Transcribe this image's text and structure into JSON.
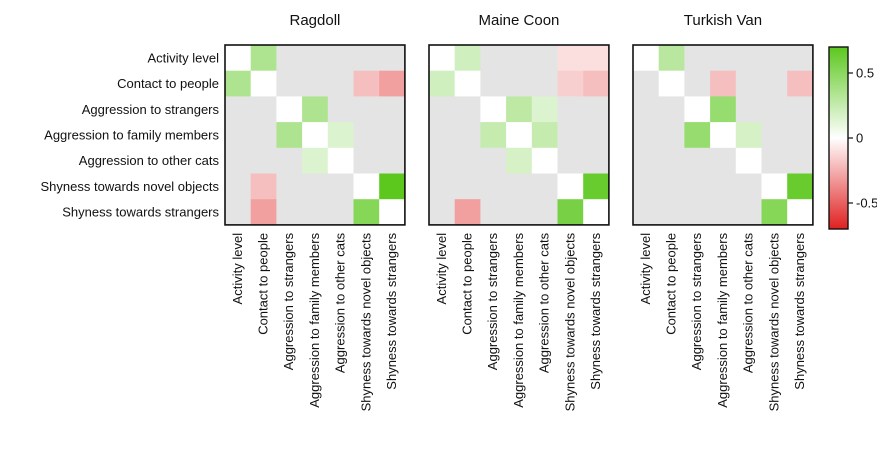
{
  "chart_data": {
    "type": "heatmap",
    "traits": [
      "Activity level",
      "Contact to people",
      "Aggression to strangers",
      "Aggression to family members",
      "Aggression to other cats",
      "Shyness towards novel objects",
      "Shyness towards strangers"
    ],
    "colorbar": {
      "min": -0.7,
      "max": 0.7,
      "ticks": [
        {
          "value": 0.5,
          "label": "0.5"
        },
        {
          "value": 0,
          "label": "0"
        },
        {
          "value": -0.5,
          "label": "-0.5"
        }
      ],
      "colors": {
        "negative": "#e02020",
        "neutral": "#e4e4e4",
        "positive": "#5cc81e"
      }
    },
    "panels": [
      {
        "title": "Ragdoll",
        "matrix": [
          [
            null,
            0.35,
            0,
            0,
            0,
            0,
            0
          ],
          [
            0.35,
            null,
            0,
            0,
            0,
            -0.2,
            -0.3
          ],
          [
            0,
            0,
            null,
            0.35,
            0,
            0,
            0
          ],
          [
            0,
            0,
            0.35,
            null,
            0.15,
            0,
            0
          ],
          [
            0,
            0,
            0,
            0.15,
            null,
            0,
            0
          ],
          [
            0,
            -0.2,
            0,
            0,
            0,
            null,
            0.72
          ],
          [
            0,
            -0.3,
            0,
            0,
            0,
            0.52,
            null
          ]
        ]
      },
      {
        "title": "Maine Coon",
        "matrix": [
          [
            null,
            0.2,
            0,
            0,
            0,
            -0.1,
            -0.1
          ],
          [
            0.2,
            null,
            0,
            0,
            0,
            -0.15,
            -0.2
          ],
          [
            0,
            0,
            null,
            0.28,
            0.15,
            0,
            0
          ],
          [
            0,
            0,
            0.25,
            null,
            0.25,
            0,
            0
          ],
          [
            0,
            0,
            0,
            0.18,
            null,
            0,
            0
          ],
          [
            0,
            0,
            0,
            0,
            0,
            null,
            0.65
          ],
          [
            0,
            -0.3,
            0,
            0,
            0,
            0.58,
            null
          ]
        ]
      },
      {
        "title": "Turkish Van",
        "matrix": [
          [
            null,
            0.3,
            0,
            0,
            0,
            0,
            0
          ],
          [
            0,
            null,
            0,
            -0.2,
            0,
            0,
            -0.2
          ],
          [
            0,
            0,
            null,
            0.45,
            0,
            0,
            0
          ],
          [
            0,
            0,
            0.45,
            null,
            0.18,
            0,
            0
          ],
          [
            0,
            0,
            0,
            0,
            null,
            0,
            0
          ],
          [
            0,
            0,
            0,
            0,
            0,
            null,
            0.65
          ],
          [
            0,
            0,
            0,
            0,
            0,
            0.52,
            null
          ]
        ]
      }
    ]
  }
}
